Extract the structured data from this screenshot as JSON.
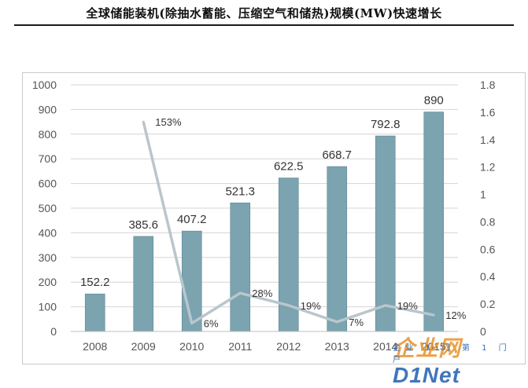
{
  "title": "全球储能装机(除抽水蓄能、压缩空气和储热)规模(MW)快速增长",
  "watermark": {
    "logo_a": "企业网",
    "logo_b": "D1Net",
    "sub": "企业 1 门 第 1 门户"
  },
  "colors": {
    "bar": "#7ba3b0",
    "bar_stroke": "#5f8896",
    "line": "#b9c6cc",
    "grid": "#d4d4d4",
    "axis_text": "#555555"
  },
  "chart_data": {
    "type": "bar",
    "categories": [
      "2008",
      "2009",
      "2010",
      "2011",
      "2012",
      "2013",
      "2014",
      "2015"
    ],
    "category_labels": [
      "2008",
      "2009",
      "2010",
      "2011",
      "2012",
      "2013",
      "2014",
      "2015"
    ],
    "values": [
      152.2,
      385.6,
      407.2,
      521.3,
      622.5,
      668.7,
      792.8,
      890
    ],
    "value_labels": [
      "152.2",
      "385.6",
      "407.2",
      "521.3",
      "622.5",
      "668.7",
      "792.8",
      "890"
    ],
    "ylim": [
      0,
      1000
    ],
    "yticks": [
      0,
      100,
      200,
      300,
      400,
      500,
      600,
      700,
      800,
      900,
      1000
    ],
    "secondary_axis": {
      "ylim": [
        0,
        1.8
      ],
      "yticks": [
        "0",
        "0.2",
        "0.4",
        "0.6",
        "0.8",
        "1",
        "1.2",
        "1.4",
        "1.6",
        "1.8"
      ]
    },
    "growth_line": {
      "categories": [
        "2009",
        "2010",
        "2011",
        "2012",
        "2013",
        "2014",
        "2015"
      ],
      "values": [
        1.53,
        0.06,
        0.28,
        0.19,
        0.07,
        0.19,
        0.12
      ],
      "labels": [
        "153%",
        "6%",
        "28%",
        "19%",
        "7%",
        "19%",
        "12%"
      ]
    },
    "grid": true,
    "legend": "none"
  }
}
